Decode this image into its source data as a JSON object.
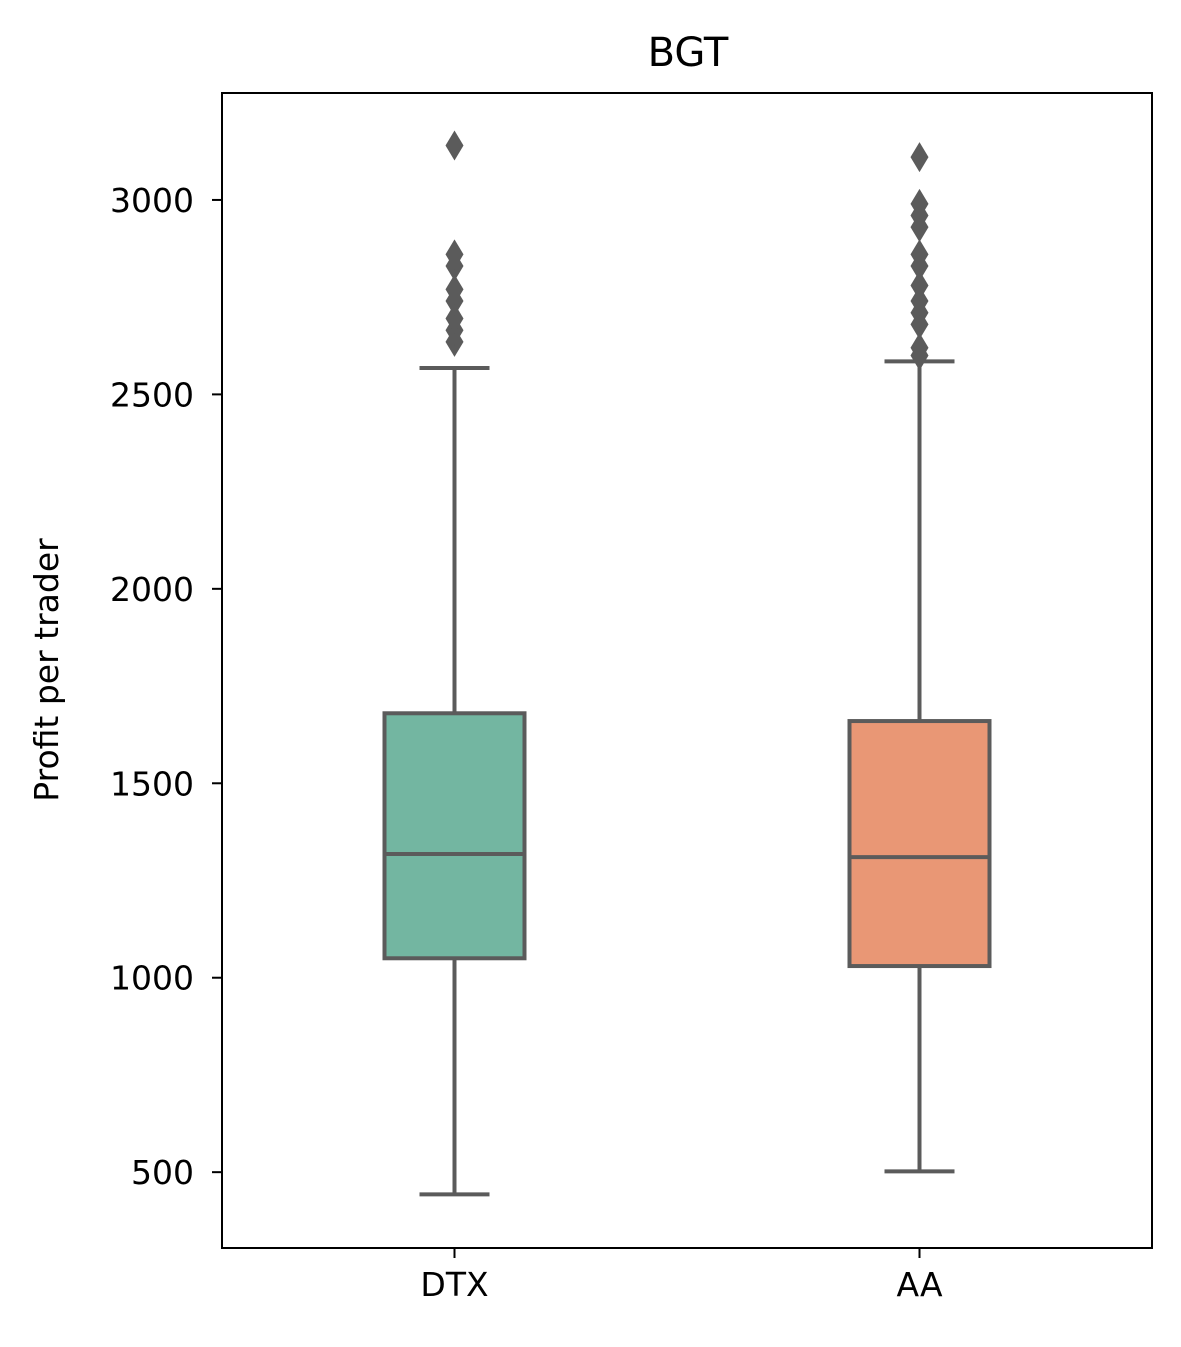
{
  "chart_data": {
    "type": "box",
    "title": "BGT",
    "xlabel": "",
    "ylabel": "Profit per trader",
    "ylim": [
      305,
      3275
    ],
    "yticks": [
      500,
      1000,
      1500,
      2000,
      2500,
      3000
    ],
    "ytick_labels": [
      "500",
      "1000",
      "1500",
      "2000",
      "2500",
      "3000"
    ],
    "grid": false,
    "categories": [
      "DTX",
      "AA"
    ],
    "boxes": [
      {
        "category": "DTX",
        "color": "#73b6a1",
        "whisker_low": 443,
        "q1": 1050,
        "median": 1318,
        "q3": 1680,
        "whisker_high": 2568,
        "outliers": [
          2635,
          2665,
          2695,
          2740,
          2770,
          2830,
          2860,
          3140
        ]
      },
      {
        "category": "AA",
        "color": "#e99775",
        "whisker_low": 502,
        "q1": 1030,
        "median": 1310,
        "q3": 1660,
        "whisker_high": 2585,
        "outliers": [
          2600,
          2620,
          2680,
          2710,
          2740,
          2780,
          2830,
          2860,
          2930,
          2960,
          2990,
          3110
        ]
      }
    ]
  },
  "style": {
    "line_color": "#5b5b5b",
    "axis_color": "#000000"
  }
}
